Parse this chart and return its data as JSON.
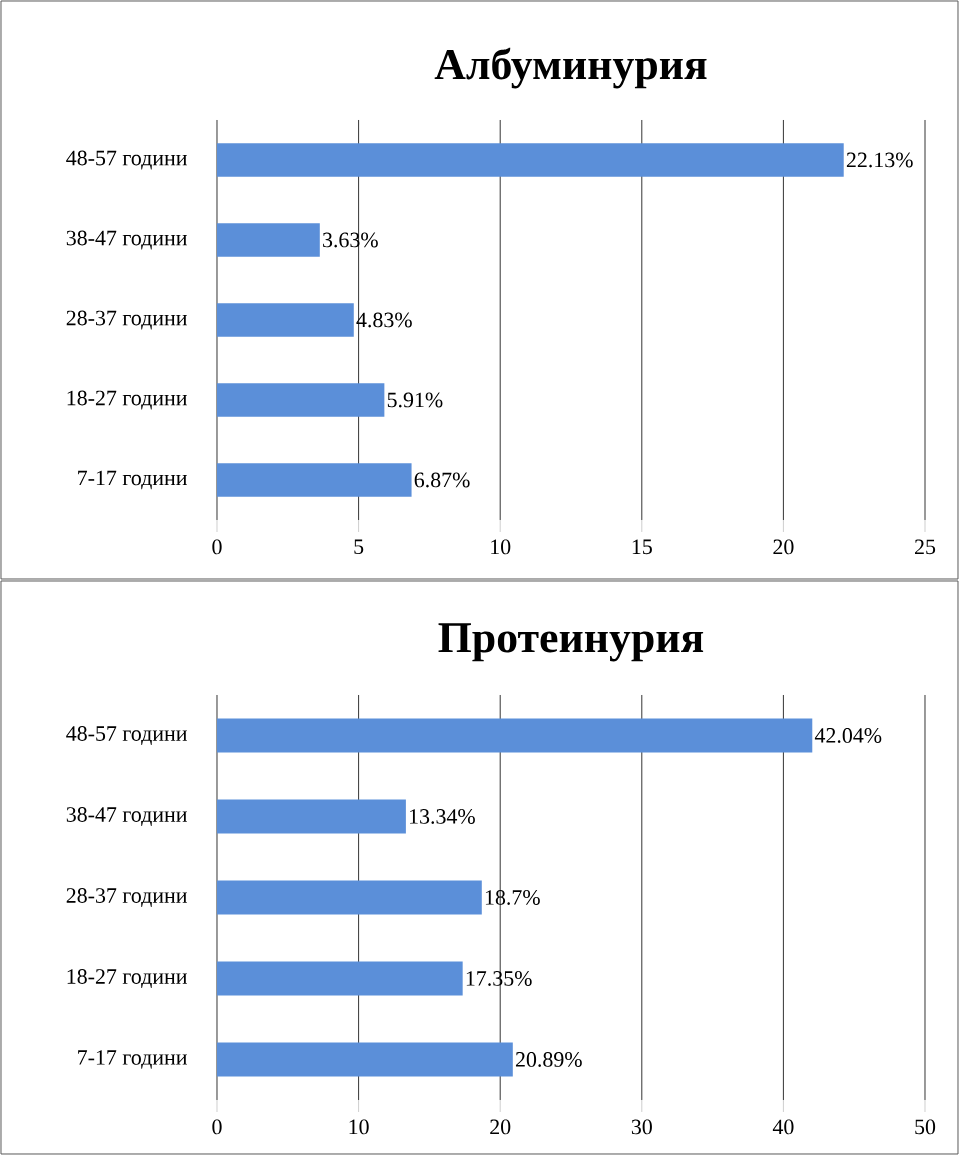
{
  "chart_data": [
    {
      "type": "bar",
      "orientation": "horizontal",
      "title": "Албуминурия",
      "categories": [
        "48-57 години",
        "38-47 години",
        "28-37 години",
        "18-27 години",
        "7-17 години"
      ],
      "values": [
        22.13,
        3.63,
        4.83,
        5.91,
        6.87
      ],
      "value_labels": [
        "22.13%",
        "3.63%",
        "4.83%",
        "5.91%",
        "6.87%"
      ],
      "color": "#5b8fd9",
      "xlim": [
        0,
        25
      ],
      "xticks": [
        0,
        5,
        10,
        15,
        20,
        25
      ],
      "grid": "x"
    },
    {
      "type": "bar",
      "orientation": "horizontal",
      "title": "Протеинурия",
      "categories": [
        "48-57 години",
        "38-47 години",
        "28-37 години",
        "18-27 години",
        "7-17 години"
      ],
      "values": [
        42.04,
        13.34,
        18.7,
        17.35,
        20.89
      ],
      "value_labels": [
        "42.04%",
        "13.34%",
        "18.7%",
        "17.35%",
        "20.89%"
      ],
      "color": "#5b8fd9",
      "xlim": [
        0,
        50
      ],
      "xticks": [
        0,
        10,
        20,
        30,
        40,
        50
      ],
      "grid": "x"
    }
  ]
}
